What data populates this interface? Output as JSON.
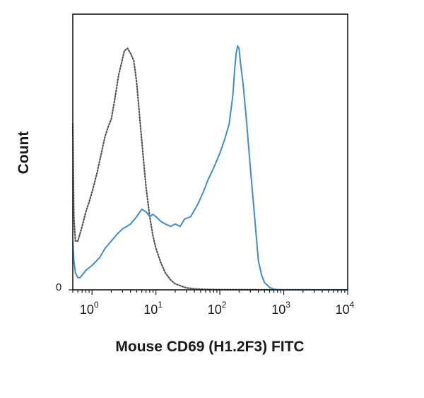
{
  "chart_data": {
    "type": "line",
    "title": "",
    "xlabel": "Mouse CD69 (H1.2F3) FITC",
    "ylabel": "Count",
    "x_scale": "log",
    "xlim": [
      0.5,
      10000
    ],
    "ylim": [
      0,
      1.0
    ],
    "x_ticks": [
      {
        "base": "10",
        "exp": "0",
        "value": 1
      },
      {
        "base": "10",
        "exp": "1",
        "value": 10
      },
      {
        "base": "10",
        "exp": "2",
        "value": 100
      },
      {
        "base": "10",
        "exp": "3",
        "value": 1000
      },
      {
        "base": "10",
        "exp": "4",
        "value": 10000
      }
    ],
    "y_ticks": [
      {
        "label": "0",
        "value": 0
      }
    ],
    "grid": false,
    "series": [
      {
        "style": "dotted",
        "color": "#555555",
        "x": [
          0.5,
          0.52,
          0.55,
          0.6,
          0.7,
          0.8,
          0.9,
          1.0,
          1.2,
          1.4,
          1.6,
          1.8,
          2.0,
          2.3,
          2.6,
          2.9,
          3.2,
          3.6,
          4.0,
          4.5,
          5.0,
          5.6,
          6.3,
          7.0,
          8.0,
          9.0,
          10.0,
          12.0,
          14.0,
          17.0,
          20.0,
          25.0,
          30.0,
          40.0,
          60.0,
          100.0,
          10000
        ],
        "y": [
          0.68,
          0.3,
          0.2,
          0.2,
          0.26,
          0.32,
          0.36,
          0.4,
          0.48,
          0.56,
          0.63,
          0.67,
          0.7,
          0.79,
          0.88,
          0.93,
          0.98,
          0.99,
          0.97,
          0.94,
          0.85,
          0.7,
          0.55,
          0.42,
          0.3,
          0.22,
          0.17,
          0.11,
          0.07,
          0.04,
          0.025,
          0.015,
          0.008,
          0.004,
          0.002,
          0.001,
          0.0
        ]
      },
      {
        "style": "solid",
        "color": "#3a8fd0",
        "x": [
          0.5,
          0.52,
          0.55,
          0.6,
          0.65,
          0.7,
          0.8,
          1.0,
          1.3,
          1.6,
          2.0,
          2.5,
          3.0,
          3.5,
          4.0,
          5.0,
          6.0,
          7.0,
          8.0,
          9.0,
          10.0,
          12.0,
          14.0,
          17.0,
          20.0,
          24.0,
          28.0,
          35.0,
          45.0,
          55.0,
          65.0,
          80.0,
          100.0,
          120.0,
          140.0,
          160.0,
          170.0,
          180.0,
          190.0,
          200.0,
          210.0,
          230.0,
          260.0,
          300.0,
          350.0,
          400.0,
          450.0,
          500.0,
          600.0,
          700.0,
          800.0,
          1000.0,
          10000
        ],
        "y": [
          0.2,
          0.12,
          0.07,
          0.05,
          0.05,
          0.06,
          0.08,
          0.1,
          0.13,
          0.17,
          0.2,
          0.23,
          0.25,
          0.26,
          0.27,
          0.3,
          0.33,
          0.32,
          0.3,
          0.31,
          0.3,
          0.28,
          0.27,
          0.26,
          0.27,
          0.26,
          0.29,
          0.3,
          0.35,
          0.4,
          0.45,
          0.5,
          0.56,
          0.62,
          0.68,
          0.8,
          0.9,
          0.97,
          1.0,
          0.99,
          0.93,
          0.85,
          0.7,
          0.5,
          0.3,
          0.12,
          0.06,
          0.03,
          0.01,
          0.003,
          0.001,
          0.0,
          0.0
        ]
      }
    ]
  }
}
